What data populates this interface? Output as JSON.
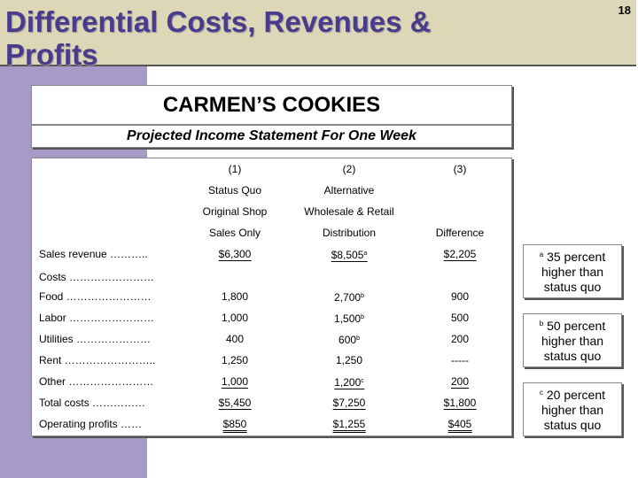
{
  "slide": {
    "title_line1": "Differential Costs, Revenues &",
    "title_line2": "Profits",
    "number": "18"
  },
  "company": "CARMEN’S COOKIES",
  "statement_title": "Projected Income Statement For One Week",
  "columns": [
    {
      "number": "(1)",
      "line1": "Status Quo",
      "line2": "Original Shop",
      "line3": "Sales Only"
    },
    {
      "number": "(2)",
      "line1": "Alternative",
      "line2": "Wholesale & Retail",
      "line3": "Distribution"
    },
    {
      "number": "(3)",
      "line1": "",
      "line2": "",
      "line3": "Difference"
    }
  ],
  "rows": {
    "sales": {
      "label": "Sales revenue ………..",
      "c1": "$6,300",
      "c2": "$8,505",
      "c2_sup": "a",
      "c3": "$2,205"
    },
    "costs": {
      "label": "Costs ……………………"
    },
    "food": {
      "label": "Food ……………………",
      "c1": "1,800",
      "c2": "2,700",
      "c2_sup": "b",
      "c3": "900"
    },
    "labor": {
      "label": "Labor ……………………",
      "c1": "1,000",
      "c2": "1,500",
      "c2_sup": "b",
      "c3": "500"
    },
    "utilities": {
      "label": "Utilities …………………",
      "c1": "400",
      "c2": "600",
      "c2_sup": "b",
      "c3": "200"
    },
    "rent": {
      "label": "Rent ……………………..",
      "c1": "1,250",
      "c2": "1,250",
      "c3": "-----"
    },
    "other": {
      "label": "Other ……………………",
      "c1": "1,000",
      "c2": "1,200",
      "c2_sup": "c",
      "c3": "200"
    },
    "total": {
      "label": "Total costs ……………",
      "c1": "$5,450",
      "c2": "$7,250",
      "c3": "$1,800"
    },
    "profit": {
      "label": "Operating profits ……",
      "c1": "$850",
      "c2": "$1,255",
      "c3": "$405"
    }
  },
  "notes": [
    {
      "sup": "a",
      "text": "35 percent higher than status quo"
    },
    {
      "sup": "b",
      "text": "50 percent higher than status quo"
    },
    {
      "sup": "c",
      "text": "20 percent higher than status quo"
    }
  ]
}
